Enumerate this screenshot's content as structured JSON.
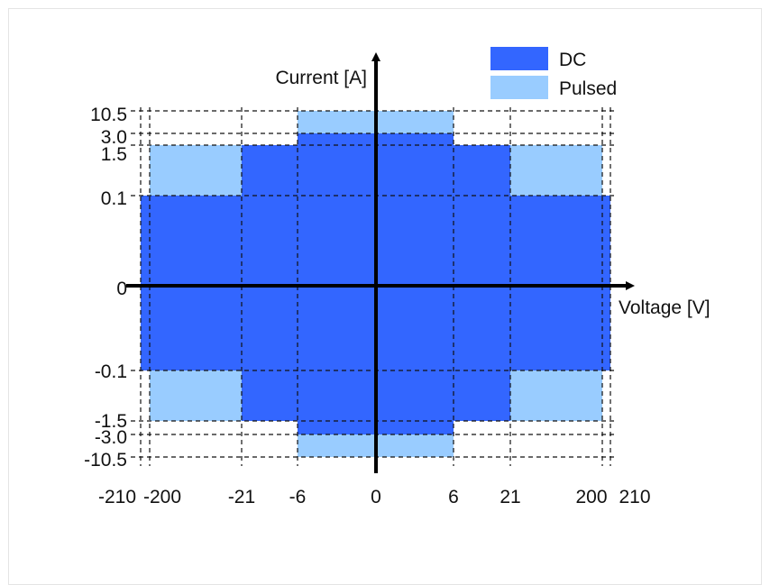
{
  "chart_data": {
    "type": "area",
    "xlabel": "Voltage [V]",
    "ylabel": "Current [A]",
    "x_ticks": [
      "-210",
      "-200",
      "-21",
      "-6",
      "0",
      "6",
      "21",
      "200",
      "210"
    ],
    "y_ticks": [
      "10.5",
      "3.0",
      "1.5",
      "0.1",
      "0",
      "-0.1",
      "-1.5",
      "-3.0",
      "-10.5"
    ],
    "legend": [
      {
        "name": "DC",
        "color": "#3366ff"
      },
      {
        "name": "Pulsed",
        "color": "#99ccff"
      }
    ],
    "regions": {
      "DC": [
        {
          "v": [
            -210,
            210
          ],
          "i": [
            -0.1,
            0.1
          ]
        },
        {
          "v": [
            -21,
            21
          ],
          "i": [
            -1.5,
            1.5
          ]
        },
        {
          "v": [
            -6,
            6
          ],
          "i": [
            -3.0,
            3.0
          ]
        }
      ],
      "Pulsed": [
        {
          "v": [
            -200,
            -21
          ],
          "i": [
            0.1,
            1.5
          ]
        },
        {
          "v": [
            21,
            200
          ],
          "i": [
            0.1,
            1.5
          ]
        },
        {
          "v": [
            -200,
            -21
          ],
          "i": [
            -1.5,
            -0.1
          ]
        },
        {
          "v": [
            21,
            200
          ],
          "i": [
            -1.5,
            -0.1
          ]
        },
        {
          "v": [
            -6,
            6
          ],
          "i": [
            3.0,
            10.5
          ]
        },
        {
          "v": [
            -6,
            6
          ],
          "i": [
            -10.5,
            -3.0
          ]
        }
      ]
    },
    "grid": true,
    "legend_position": "top-right"
  }
}
